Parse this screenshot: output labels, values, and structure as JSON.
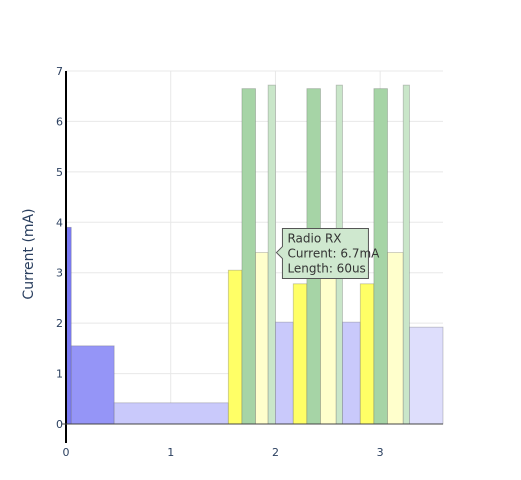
{
  "chart_data": {
    "type": "bar",
    "title": "",
    "xlabel": "",
    "ylabel": "Current (mA)",
    "xlim": [
      0,
      3.6
    ],
    "ylim": [
      0,
      7
    ],
    "x_ticks": [
      "0",
      "1",
      "2",
      "3"
    ],
    "y_ticks": [
      "0",
      "1",
      "2",
      "3",
      "4",
      "5",
      "6",
      "7"
    ],
    "grid": true,
    "segments": [
      {
        "x0": 0.0,
        "x1": 0.05,
        "y": 3.9,
        "color": "#7b7bf5"
      },
      {
        "x0": 0.05,
        "x1": 0.46,
        "y": 1.55,
        "color": "#9595f7"
      },
      {
        "x0": 0.46,
        "x1": 1.55,
        "y": 0.42,
        "color": "#c9c9fb"
      },
      {
        "x0": 1.55,
        "x1": 1.68,
        "y": 3.05,
        "color": "#ffff66"
      },
      {
        "x0": 1.68,
        "x1": 1.81,
        "y": 6.65,
        "color": "#a6d4a6"
      },
      {
        "x0": 1.81,
        "x1": 1.93,
        "y": 3.4,
        "color": "#ffffcc"
      },
      {
        "x0": 1.93,
        "x1": 2.0,
        "y": 6.72,
        "color": "#c9e6c9"
      },
      {
        "x0": 2.0,
        "x1": 2.17,
        "y": 2.02,
        "color": "#c9c9fb"
      },
      {
        "x0": 2.17,
        "x1": 2.3,
        "y": 2.78,
        "color": "#ffff66"
      },
      {
        "x0": 2.3,
        "x1": 2.43,
        "y": 6.65,
        "color": "#a6d4a6"
      },
      {
        "x0": 2.43,
        "x1": 2.58,
        "y": 3.4,
        "color": "#ffffcc"
      },
      {
        "x0": 2.58,
        "x1": 2.64,
        "y": 6.72,
        "color": "#c9e6c9"
      },
      {
        "x0": 2.64,
        "x1": 2.81,
        "y": 2.02,
        "color": "#c9c9fb"
      },
      {
        "x0": 2.81,
        "x1": 2.94,
        "y": 2.78,
        "color": "#ffff66"
      },
      {
        "x0": 2.94,
        "x1": 3.07,
        "y": 6.65,
        "color": "#a6d4a6"
      },
      {
        "x0": 3.07,
        "x1": 3.22,
        "y": 3.4,
        "color": "#ffffcc"
      },
      {
        "x0": 3.22,
        "x1": 3.28,
        "y": 6.72,
        "color": "#c9e6c9"
      },
      {
        "x0": 3.28,
        "x1": 3.6,
        "y": 1.92,
        "color": "#dedefc"
      }
    ],
    "tooltip": {
      "lines": [
        "Radio RX",
        "Current: 6.7mA",
        "Length: 60us"
      ],
      "target_x": 2.0,
      "target_y": 3.4,
      "background": "#cfe8cf",
      "border": "#555555"
    }
  }
}
